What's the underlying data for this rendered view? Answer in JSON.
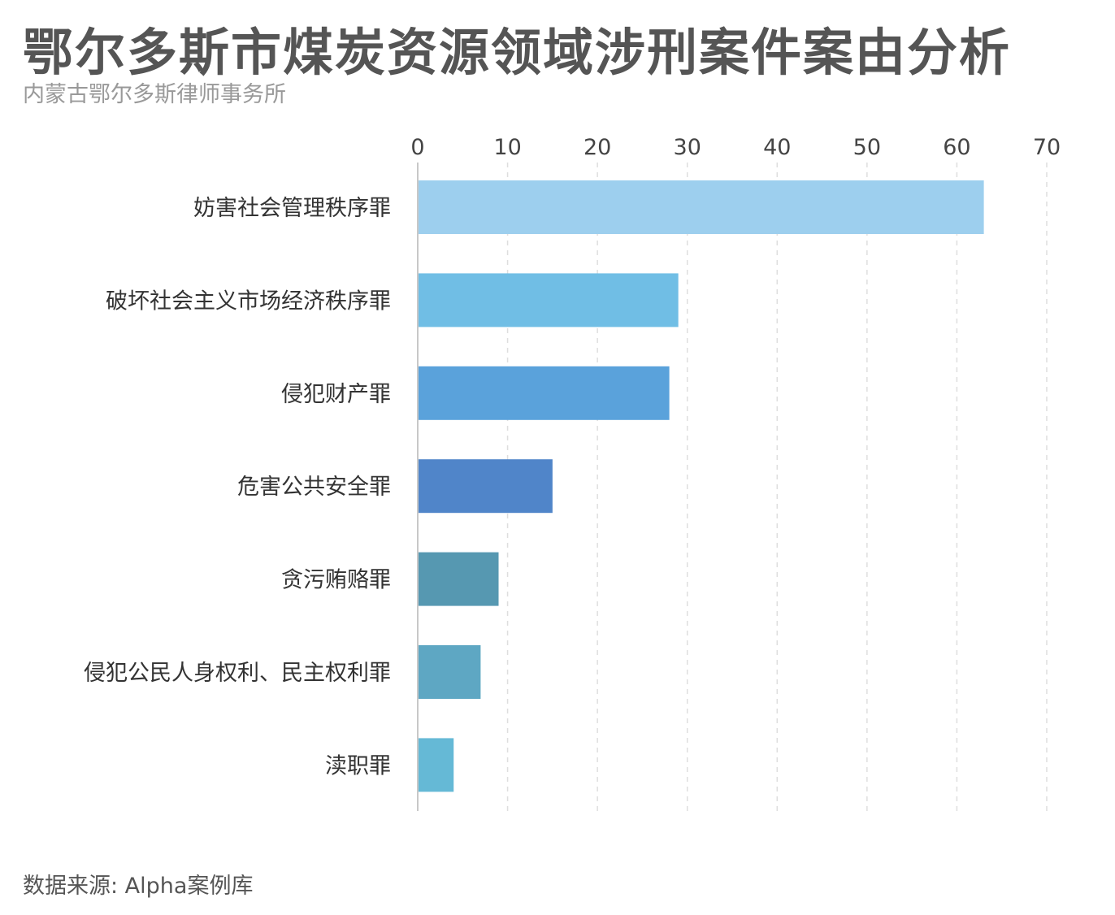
{
  "title": "鄂尔多斯市煤炭资源领域涉刑案件案由分析",
  "subtitle": "内蒙古鄂尔多斯律师事务所",
  "source": "数据来源: Alpha案例库",
  "chart_data": {
    "type": "bar",
    "orientation": "horizontal",
    "categories": [
      "妨害社会管理秩序罪",
      "破坏社会主义市场经济秩序罪",
      "侵犯财产罪",
      "危害公共安全罪",
      "贪污贿赂罪",
      "侵犯公民人身权利、民主权利罪",
      "渎职罪"
    ],
    "values": [
      63,
      29,
      28,
      15,
      9,
      7,
      4
    ],
    "colors": [
      "#9dcfee",
      "#70bee5",
      "#5aa2db",
      "#5085c9",
      "#5698b1",
      "#5ea7c3",
      "#65b9d6"
    ],
    "xlim": [
      0,
      70
    ],
    "xticks": [
      "0",
      "10",
      "20",
      "30",
      "40",
      "50",
      "60",
      "70"
    ],
    "tick_step": 10,
    "axis_position": "top",
    "grid": true,
    "grid_style": "dashed"
  }
}
